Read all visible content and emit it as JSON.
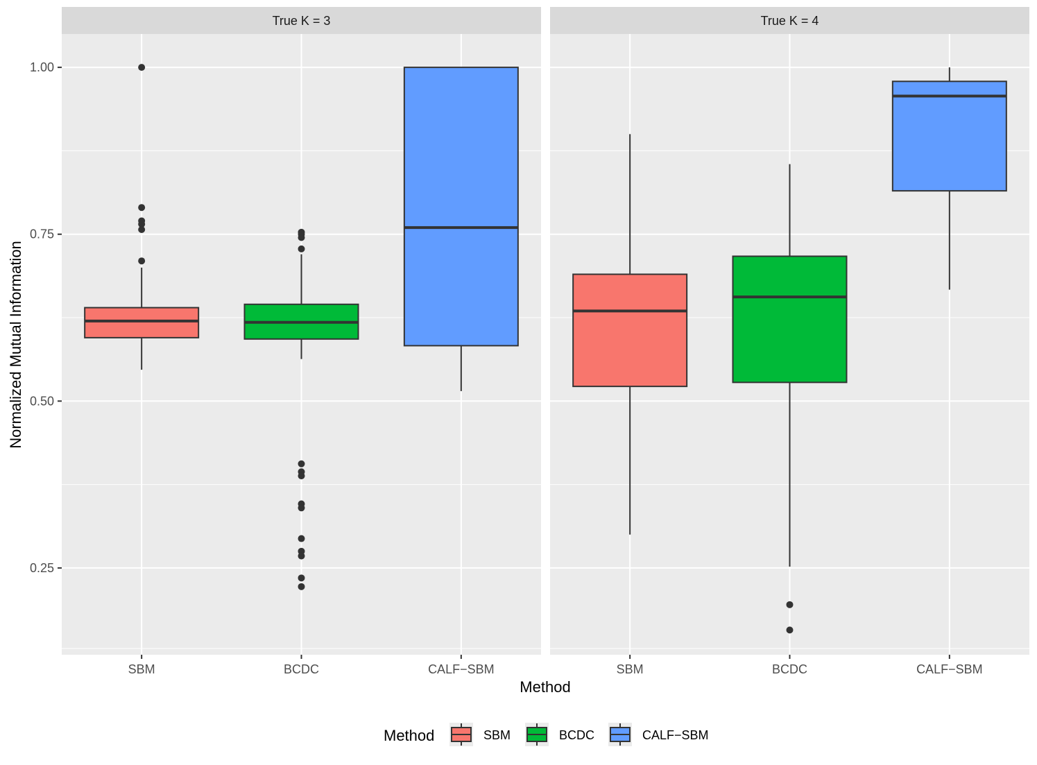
{
  "chart_data": {
    "type": "boxplot",
    "xlabel": "Method",
    "ylabel": "Normalized Mutual Information",
    "categories": [
      "SBM",
      "BCDC",
      "CALF−SBM"
    ],
    "ylim": [
      0.12,
      1.05
    ],
    "y_ticks": [
      0.25,
      0.5,
      0.75,
      1.0
    ],
    "y_tick_labels": [
      "0.25",
      "0.50",
      "0.75",
      "1.00"
    ],
    "y_minor_ticks": [
      0.375,
      0.625,
      0.875
    ],
    "grid": true,
    "legend": {
      "title": "Method",
      "position": "bottom",
      "entries": [
        {
          "label": "SBM",
          "color": "#F8766D"
        },
        {
          "label": "BCDC",
          "color": "#00BA38"
        },
        {
          "label": "CALF−SBM",
          "color": "#619CFF"
        }
      ]
    },
    "panels": [
      {
        "title": "True K = 3",
        "boxes": [
          {
            "category": "SBM",
            "color": "#F8766D",
            "whisker_low": 0.547,
            "q1": 0.595,
            "median": 0.62,
            "q3": 0.64,
            "whisker_high": 0.7,
            "outliers": [
              1.0,
              0.79,
              0.77,
              0.765,
              0.757,
              0.71
            ]
          },
          {
            "category": "BCDC",
            "color": "#00BA38",
            "whisker_low": 0.563,
            "q1": 0.593,
            "median": 0.618,
            "q3": 0.645,
            "whisker_high": 0.72,
            "outliers": [
              0.753,
              0.75,
              0.745,
              0.728,
              0.406,
              0.394,
              0.388,
              0.346,
              0.34,
              0.294,
              0.275,
              0.268,
              0.235,
              0.222
            ]
          },
          {
            "category": "CALF−SBM",
            "color": "#619CFF",
            "whisker_low": 0.515,
            "q1": 0.583,
            "median": 0.76,
            "q3": 1.0,
            "whisker_high": 1.0,
            "outliers": []
          }
        ]
      },
      {
        "title": "True K = 4",
        "boxes": [
          {
            "category": "SBM",
            "color": "#F8766D",
            "whisker_low": 0.3,
            "q1": 0.522,
            "median": 0.635,
            "q3": 0.69,
            "whisker_high": 0.9,
            "outliers": []
          },
          {
            "category": "BCDC",
            "color": "#00BA38",
            "whisker_low": 0.252,
            "q1": 0.528,
            "median": 0.656,
            "q3": 0.717,
            "whisker_high": 0.855,
            "outliers": [
              0.195,
              0.157
            ]
          },
          {
            "category": "CALF−SBM",
            "color": "#619CFF",
            "whisker_low": 0.667,
            "q1": 0.815,
            "median": 0.957,
            "q3": 0.979,
            "whisker_high": 1.0,
            "outliers": []
          }
        ]
      }
    ]
  }
}
